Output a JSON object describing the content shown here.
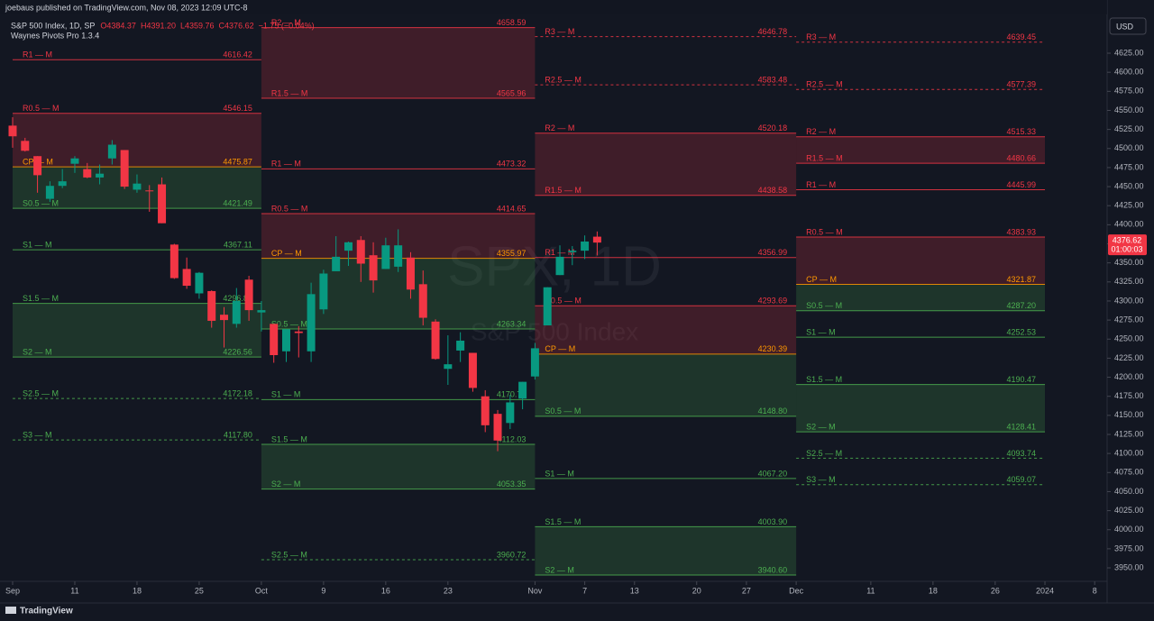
{
  "header": {
    "publisher": "joebaus published on TradingView.com, Nov 08, 2023 12:09 UTC-8",
    "symbol": "S&P 500 Index, 1D, SP",
    "ohlc": [
      "O4384.37",
      "H4391.20",
      "L4359.76",
      "C4376.62",
      "−1.75 (−0.04%)"
    ],
    "indicator": "Waynes Pivots Pro 1.3.4"
  },
  "footer": {
    "brand": "TradingView"
  },
  "chart_data": {
    "type": "candlestick",
    "watermark": "SPX, 1D",
    "watermark_sub": "S&P 500 Index",
    "currency": "USD",
    "up_color": "#089981",
    "down_color": "#f23645",
    "open": [
      4530,
      4510,
      4490,
      4434,
      4451,
      4480,
      4473,
      4462,
      4487,
      4498,
      4446,
      4445,
      4453,
      4374,
      4342,
      4310,
      4313,
      4282,
      4270,
      4328,
      4285,
      4270,
      4234,
      4260,
      4234,
      4289,
      4339,
      4366,
      4380,
      4360,
      4342,
      4345,
      4357,
      4322,
      4273,
      4211,
      4235,
      4232,
      4175,
      4152,
      4140,
      4172,
      4201,
      4268,
      4334,
      4364,
      4366,
      4384.37
    ],
    "high": [
      4541,
      4514,
      4490,
      4457,
      4473,
      4490,
      4481,
      4479,
      4511,
      4498,
      4466,
      4452,
      4462,
      4375,
      4357,
      4338,
      4314,
      4292,
      4317,
      4333,
      4300,
      4270,
      4263,
      4267,
      4324,
      4341,
      4385,
      4378,
      4385,
      4377,
      4383,
      4394,
      4364,
      4340,
      4276,
      4255,
      4259,
      4232,
      4183,
      4157,
      4177,
      4194,
      4245,
      4318,
      4373,
      4372,
      4386,
      4391.2
    ],
    "low": [
      4501,
      4496,
      4442,
      4430,
      4448,
      4468,
      4461,
      4453,
      4479,
      4447,
      4442,
      4417,
      4402,
      4329,
      4316,
      4303,
      4265,
      4239,
      4265,
      4274,
      4260,
      4219,
      4220,
      4226,
      4220,
      4283,
      4339,
      4346,
      4325,
      4311,
      4342,
      4338,
      4303,
      4268,
      4223,
      4190,
      4220,
      4181,
      4128,
      4103,
      4132,
      4158,
      4197,
      4268,
      4334,
      4347,
      4355,
      4359.76
    ],
    "close": [
      4516,
      4497,
      4465,
      4451,
      4457,
      4487,
      4462,
      4467,
      4505,
      4450,
      4454,
      4444,
      4402,
      4330,
      4320,
      4337,
      4274,
      4275,
      4300,
      4288,
      4288,
      4229,
      4263,
      4258,
      4309,
      4336,
      4358,
      4377,
      4349,
      4327,
      4373,
      4373,
      4315,
      4278,
      4224,
      4217,
      4248,
      4186,
      4137,
      4117,
      4167,
      4194,
      4238,
      4318,
      4358,
      4366,
      4378,
      4376.62
    ],
    "last_price": {
      "value": 4376.62,
      "countdown": "01:00:03",
      "color": "#f23645"
    },
    "xlim": [
      -1.0145,
      88
    ],
    "ylim": [
      3932.3,
      4673.5
    ],
    "xticks": [
      {
        "value": 0,
        "label": "Sep"
      },
      {
        "value": 5,
        "label": "11"
      },
      {
        "value": 10,
        "label": "18"
      },
      {
        "value": 15,
        "label": "25"
      },
      {
        "value": 20,
        "label": "Oct"
      },
      {
        "value": 25,
        "label": "9"
      },
      {
        "value": 30,
        "label": "16"
      },
      {
        "value": 35,
        "label": "23"
      },
      {
        "value": 42,
        "label": "Nov"
      },
      {
        "value": 46,
        "label": "7"
      },
      {
        "value": 50,
        "label": "13"
      },
      {
        "value": 55,
        "label": "20"
      },
      {
        "value": 59,
        "label": "27"
      },
      {
        "value": 63,
        "label": "Dec"
      },
      {
        "value": 69,
        "label": "11"
      },
      {
        "value": 74,
        "label": "18"
      },
      {
        "value": 79,
        "label": "26"
      },
      {
        "value": 83,
        "label": "2024"
      },
      {
        "value": 87,
        "label": "8"
      }
    ],
    "yticks": [
      {
        "value": 3950,
        "label": "3950.00"
      },
      {
        "value": 3975,
        "label": "3975.00"
      },
      {
        "value": 4000,
        "label": "4000.00"
      },
      {
        "value": 4025,
        "label": "4025.00"
      },
      {
        "value": 4050,
        "label": "4050.00"
      },
      {
        "value": 4075,
        "label": "4075.00"
      },
      {
        "value": 4100,
        "label": "4100.00"
      },
      {
        "value": 4125,
        "label": "4125.00"
      },
      {
        "value": 4150,
        "label": "4150.00"
      },
      {
        "value": 4175,
        "label": "4175.00"
      },
      {
        "value": 4200,
        "label": "4200.00"
      },
      {
        "value": 4225,
        "label": "4225.00"
      },
      {
        "value": 4250,
        "label": "4250.00"
      },
      {
        "value": 4275,
        "label": "4275.00"
      },
      {
        "value": 4300,
        "label": "4300.00"
      },
      {
        "value": 4325,
        "label": "4325.00"
      },
      {
        "value": 4350,
        "label": "4350.00"
      },
      {
        "value": 4375,
        "label": "4375.00"
      },
      {
        "value": 4400,
        "label": "4400.00"
      },
      {
        "value": 4425,
        "label": "4425.00"
      },
      {
        "value": 4450,
        "label": "4450.00"
      },
      {
        "value": 4475,
        "label": "4475.00"
      },
      {
        "value": 4500,
        "label": "4500.00"
      },
      {
        "value": 4525,
        "label": "4525.00"
      },
      {
        "value": 4550,
        "label": "4550.00"
      },
      {
        "value": 4575,
        "label": "4575.00"
      },
      {
        "value": 4600,
        "label": "4600.00"
      },
      {
        "value": 4625,
        "label": "4625.00"
      }
    ],
    "pivots": [
      {
        "x": [
          0,
          20
        ],
        "levels": [
          {
            "name": "R1 — M",
            "value": 4616.42,
            "color": "#f23645"
          },
          {
            "name": "R0.5 — M",
            "value": 4546.15,
            "color": "#f23645",
            "fill": "rgba(242,54,69,0.2)"
          },
          {
            "name": "CP — M",
            "value": 4475.87,
            "color": "#ff9800",
            "fill": "rgba(76,175,80,0.2)"
          },
          {
            "name": "S0.5 — M",
            "value": 4421.49,
            "color": "#4caf50"
          },
          {
            "name": "S1 — M",
            "value": 4367.11,
            "color": "#4caf50"
          },
          {
            "name": "S1.5 — M",
            "value": 4296.84,
            "color": "#4caf50",
            "fill": "rgba(76,175,80,0.2)"
          },
          {
            "name": "S2 — M",
            "value": 4226.56,
            "color": "#4caf50"
          },
          {
            "name": "S2.5 — M",
            "value": 4172.18,
            "color": "#4caf50",
            "style": "dashed"
          },
          {
            "name": "S3 — M",
            "value": 4117.8,
            "value_label": "4117.80",
            "color": "#4caf50",
            "style": "dashed"
          }
        ]
      },
      {
        "x": [
          20,
          42
        ],
        "levels": [
          {
            "name": "R2 — M",
            "value": 4658.59,
            "color": "#f23645",
            "fill": "rgba(242,54,69,0.2)"
          },
          {
            "name": "R1.5 — M",
            "value": 4565.96,
            "color": "#f23645"
          },
          {
            "name": "R1 — M",
            "value": 4473.32,
            "color": "#f23645"
          },
          {
            "name": "R0.5 — M",
            "value": 4414.65,
            "color": "#f23645",
            "fill": "rgba(242,54,69,0.2)"
          },
          {
            "name": "CP — M",
            "value": 4355.97,
            "color": "#ff9800",
            "fill": "rgba(76,175,80,0.2)"
          },
          {
            "name": "S0.5 — M",
            "value": 4263.34,
            "color": "#4caf50"
          },
          {
            "name": "S1 — M",
            "value": 4170.71,
            "color": "#4caf50"
          },
          {
            "name": "S1.5 — M",
            "value": 4112.03,
            "color": "#4caf50",
            "fill": "rgba(76,175,80,0.2)"
          },
          {
            "name": "S2 — M",
            "value": 4053.35,
            "color": "#4caf50"
          },
          {
            "name": "S2.5 — M",
            "value": 3960.72,
            "color": "#4caf50",
            "style": "dashed"
          }
        ]
      },
      {
        "x": [
          42,
          63
        ],
        "levels": [
          {
            "name": "R3 — M",
            "value": 4646.78,
            "color": "#f23645",
            "style": "dashed"
          },
          {
            "name": "R2.5 — M",
            "value": 4583.48,
            "color": "#f23645",
            "style": "dashed"
          },
          {
            "name": "R2 — M",
            "value": 4520.18,
            "color": "#f23645",
            "fill": "rgba(242,54,69,0.2)"
          },
          {
            "name": "R1.5 — M",
            "value": 4438.58,
            "color": "#f23645"
          },
          {
            "name": "R1 — M",
            "value": 4356.99,
            "color": "#f23645"
          },
          {
            "name": "R0.5 — M",
            "value": 4293.69,
            "color": "#f23645",
            "fill": "rgba(242,54,69,0.2)"
          },
          {
            "name": "CP — M",
            "value": 4230.39,
            "color": "#ff9800",
            "fill": "rgba(76,175,80,0.2)"
          },
          {
            "name": "S0.5 — M",
            "value": 4148.8,
            "value_label": "4148.80",
            "color": "#4caf50"
          },
          {
            "name": "S1 — M",
            "value": 4067.2,
            "value_label": "4067.20",
            "color": "#4caf50"
          },
          {
            "name": "S1.5 — M",
            "value": 4003.9,
            "value_label": "4003.90",
            "color": "#4caf50",
            "fill": "rgba(76,175,80,0.2)"
          },
          {
            "name": "S2 — M",
            "value": 3940.6,
            "value_label": "3940.60",
            "color": "#4caf50"
          }
        ]
      },
      {
        "x": [
          63,
          83
        ],
        "levels": [
          {
            "name": "R3 — M",
            "value": 4639.45,
            "color": "#f23645",
            "style": "dashed"
          },
          {
            "name": "R2.5 — M",
            "value": 4577.39,
            "color": "#f23645",
            "style": "dashed"
          },
          {
            "name": "R2 — M",
            "value": 4515.33,
            "color": "#f23645",
            "fill": "rgba(242,54,69,0.2)"
          },
          {
            "name": "R1.5 — M",
            "value": 4480.66,
            "color": "#f23645"
          },
          {
            "name": "R1 — M",
            "value": 4445.99,
            "color": "#f23645"
          },
          {
            "name": "R0.5 — M",
            "value": 4383.93,
            "color": "#f23645",
            "fill": "rgba(242,54,69,0.2)"
          },
          {
            "name": "CP — M",
            "value": 4321.87,
            "color": "#ff9800",
            "fill": "rgba(76,175,80,0.2)"
          },
          {
            "name": "S0.5 — M",
            "value": 4287.2,
            "value_label": "4287.20",
            "color": "#4caf50"
          },
          {
            "name": "S1 — M",
            "value": 4252.53,
            "color": "#4caf50"
          },
          {
            "name": "S1.5 — M",
            "value": 4190.47,
            "color": "#4caf50",
            "fill": "rgba(76,175,80,0.2)"
          },
          {
            "name": "S2 — M",
            "value": 4128.41,
            "color": "#4caf50"
          },
          {
            "name": "S2.5 — M",
            "value": 4093.74,
            "color": "#4caf50",
            "style": "dashed"
          },
          {
            "name": "S3 — M",
            "value": 4059.07,
            "color": "#4caf50",
            "style": "dashed"
          }
        ]
      }
    ]
  }
}
